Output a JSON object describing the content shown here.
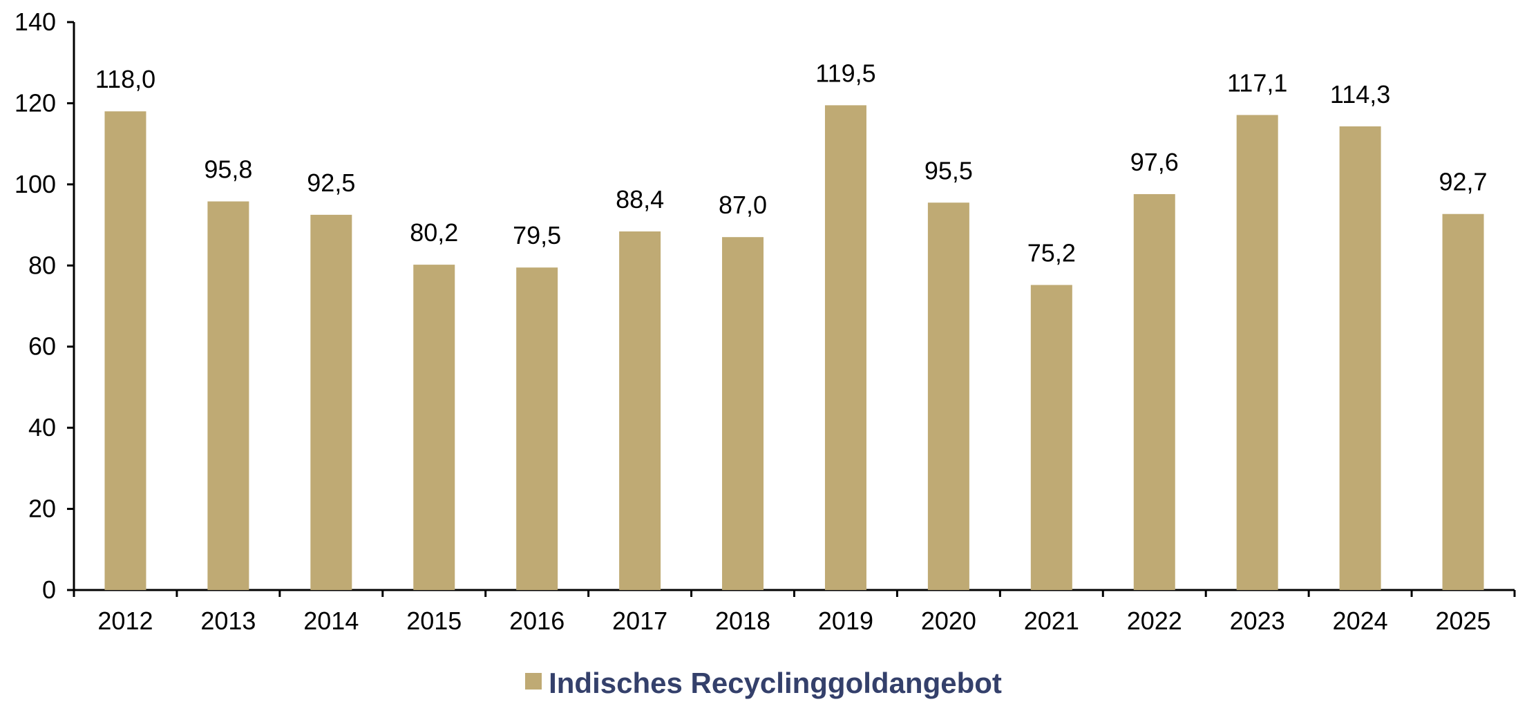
{
  "chart_data": {
    "type": "bar",
    "categories": [
      "2012",
      "2013",
      "2014",
      "2015",
      "2016",
      "2017",
      "2018",
      "2019",
      "2020",
      "2021",
      "2022",
      "2023",
      "2024",
      "2025"
    ],
    "series": [
      {
        "name": "Indisches Recyclinggoldangebot",
        "values": [
          118.0,
          95.8,
          92.5,
          80.2,
          79.5,
          88.4,
          87.0,
          119.5,
          95.5,
          75.2,
          97.6,
          117.1,
          114.3,
          92.7
        ],
        "labels": [
          "118,0",
          "95,8",
          "92,5",
          "80,2",
          "79,5",
          "88,4",
          "87,0",
          "119,5",
          "95,5",
          "75,2",
          "97,6",
          "117,1",
          "114,3",
          "92,7"
        ],
        "color": "#bfaa74"
      }
    ],
    "title": "",
    "xlabel": "",
    "ylabel": "",
    "ylim": [
      0,
      140
    ],
    "yticks": [
      0,
      20,
      40,
      60,
      80,
      100,
      120,
      140
    ],
    "grid": false,
    "legend": "bottom-center"
  },
  "colors": {
    "bar": "#bfaa74",
    "legend_text": "#34406b",
    "axis": "#000000"
  }
}
